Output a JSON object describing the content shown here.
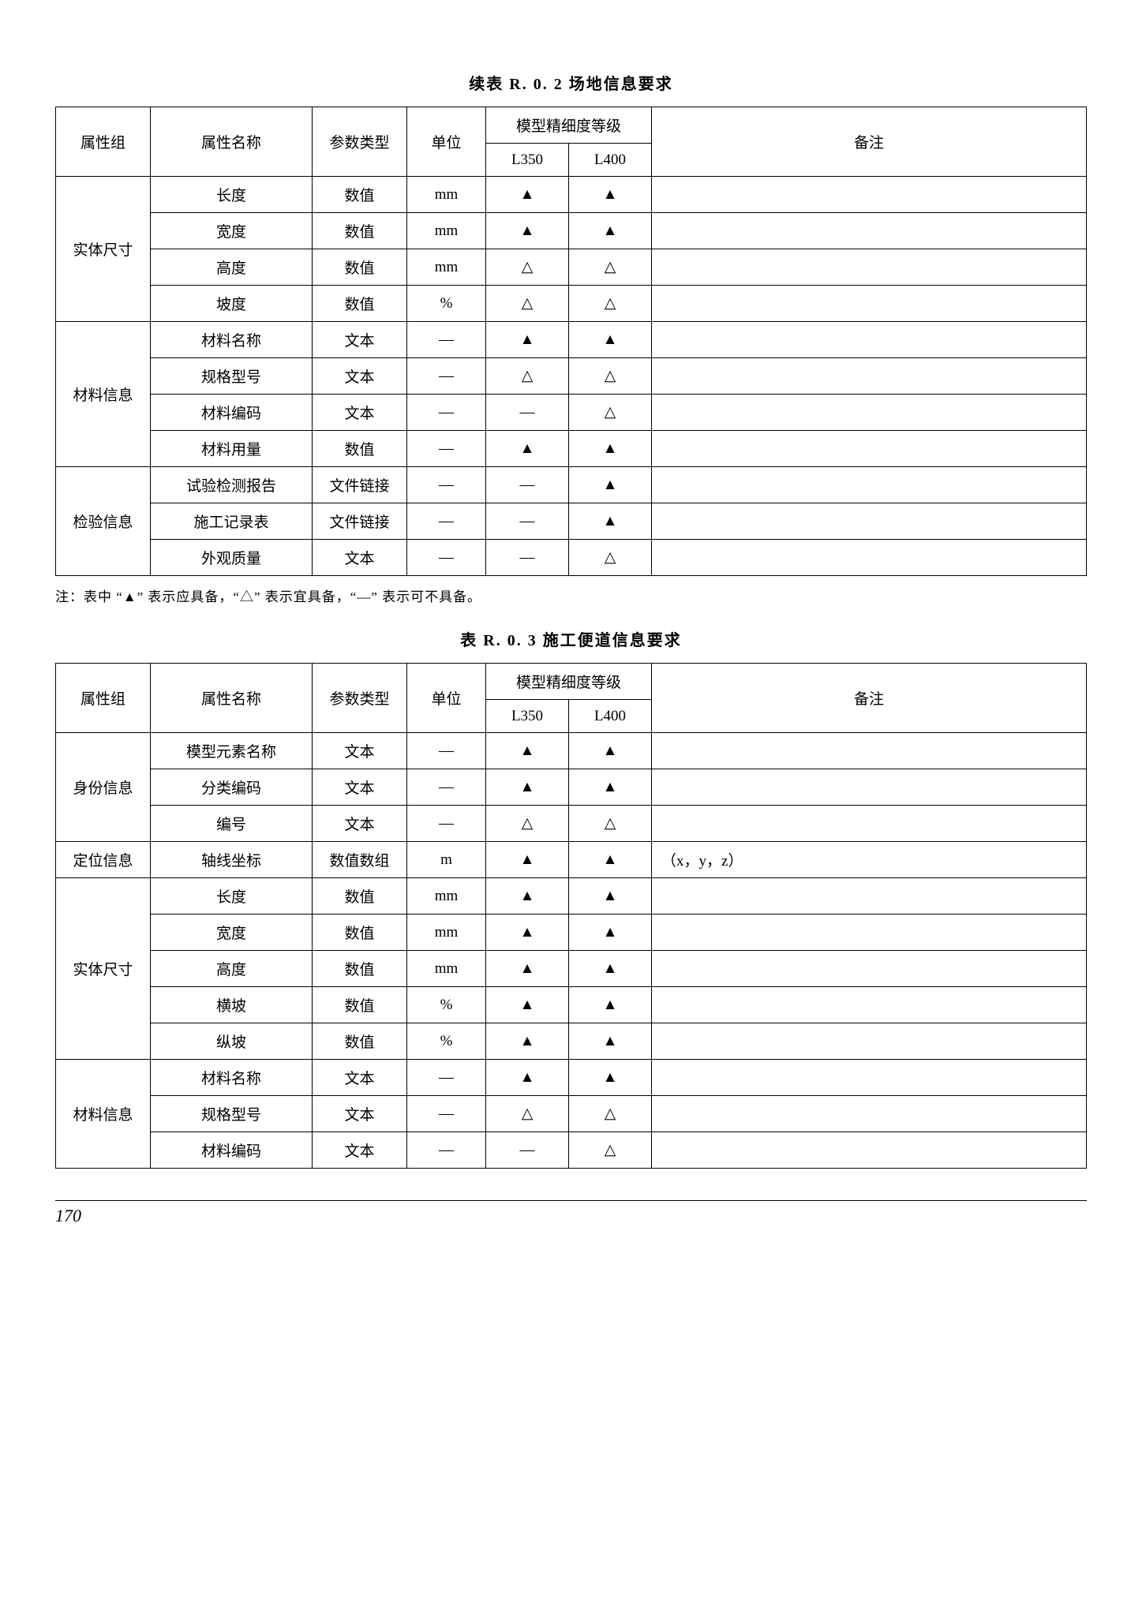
{
  "symbols": {
    "filled": "▲",
    "hollow": "△",
    "dash": "—"
  },
  "table1": {
    "title": "续表 R. 0. 2   场地信息要求",
    "headers": {
      "group": "属性组",
      "name": "属性名称",
      "ptype": "参数类型",
      "unit": "单位",
      "levelTitle": "模型精细度等级",
      "l350": "L350",
      "l400": "L400",
      "remark": "备注"
    },
    "groups": [
      {
        "label": "实体尺寸",
        "rows": [
          {
            "name": "长度",
            "ptype": "数值",
            "unit": "mm",
            "l350": "▲",
            "l400": "▲",
            "remark": ""
          },
          {
            "name": "宽度",
            "ptype": "数值",
            "unit": "mm",
            "l350": "▲",
            "l400": "▲",
            "remark": ""
          },
          {
            "name": "高度",
            "ptype": "数值",
            "unit": "mm",
            "l350": "△",
            "l400": "△",
            "remark": ""
          },
          {
            "name": "坡度",
            "ptype": "数值",
            "unit": "%",
            "l350": "△",
            "l400": "△",
            "remark": ""
          }
        ]
      },
      {
        "label": "材料信息",
        "rows": [
          {
            "name": "材料名称",
            "ptype": "文本",
            "unit": "—",
            "l350": "▲",
            "l400": "▲",
            "remark": ""
          },
          {
            "name": "规格型号",
            "ptype": "文本",
            "unit": "—",
            "l350": "△",
            "l400": "△",
            "remark": ""
          },
          {
            "name": "材料编码",
            "ptype": "文本",
            "unit": "—",
            "l350": "—",
            "l400": "△",
            "remark": ""
          },
          {
            "name": "材料用量",
            "ptype": "数值",
            "unit": "—",
            "l350": "▲",
            "l400": "▲",
            "remark": ""
          }
        ]
      },
      {
        "label": "检验信息",
        "rows": [
          {
            "name": "试验检测报告",
            "ptype": "文件链接",
            "unit": "—",
            "l350": "—",
            "l400": "▲",
            "remark": ""
          },
          {
            "name": "施工记录表",
            "ptype": "文件链接",
            "unit": "—",
            "l350": "—",
            "l400": "▲",
            "remark": ""
          },
          {
            "name": "外观质量",
            "ptype": "文本",
            "unit": "—",
            "l350": "—",
            "l400": "△",
            "remark": ""
          }
        ]
      }
    ],
    "note": "注：表中 “▲” 表示应具备，“△” 表示宜具备，“—” 表示可不具备。"
  },
  "table2": {
    "title": "表 R. 0. 3   施工便道信息要求",
    "headers": {
      "group": "属性组",
      "name": "属性名称",
      "ptype": "参数类型",
      "unit": "单位",
      "levelTitle": "模型精细度等级",
      "l350": "L350",
      "l400": "L400",
      "remark": "备注"
    },
    "groups": [
      {
        "label": "身份信息",
        "rows": [
          {
            "name": "模型元素名称",
            "ptype": "文本",
            "unit": "—",
            "l350": "▲",
            "l400": "▲",
            "remark": ""
          },
          {
            "name": "分类编码",
            "ptype": "文本",
            "unit": "—",
            "l350": "▲",
            "l400": "▲",
            "remark": ""
          },
          {
            "name": "编号",
            "ptype": "文本",
            "unit": "—",
            "l350": "△",
            "l400": "△",
            "remark": ""
          }
        ]
      },
      {
        "label": "定位信息",
        "rows": [
          {
            "name": "轴线坐标",
            "ptype": "数值数组",
            "unit": "m",
            "l350": "▲",
            "l400": "▲",
            "remark": "（x，y，z）"
          }
        ]
      },
      {
        "label": "实体尺寸",
        "rows": [
          {
            "name": "长度",
            "ptype": "数值",
            "unit": "mm",
            "l350": "▲",
            "l400": "▲",
            "remark": ""
          },
          {
            "name": "宽度",
            "ptype": "数值",
            "unit": "mm",
            "l350": "▲",
            "l400": "▲",
            "remark": ""
          },
          {
            "name": "高度",
            "ptype": "数值",
            "unit": "mm",
            "l350": "▲",
            "l400": "▲",
            "remark": ""
          },
          {
            "name": "横坡",
            "ptype": "数值",
            "unit": "%",
            "l350": "▲",
            "l400": "▲",
            "remark": ""
          },
          {
            "name": "纵坡",
            "ptype": "数值",
            "unit": "%",
            "l350": "▲",
            "l400": "▲",
            "remark": ""
          }
        ]
      },
      {
        "label": "材料信息",
        "rows": [
          {
            "name": "材料名称",
            "ptype": "文本",
            "unit": "—",
            "l350": "▲",
            "l400": "▲",
            "remark": ""
          },
          {
            "name": "规格型号",
            "ptype": "文本",
            "unit": "—",
            "l350": "△",
            "l400": "△",
            "remark": ""
          },
          {
            "name": "材料编码",
            "ptype": "文本",
            "unit": "—",
            "l350": "—",
            "l400": "△",
            "remark": ""
          }
        ]
      }
    ]
  },
  "pageNumber": "170"
}
